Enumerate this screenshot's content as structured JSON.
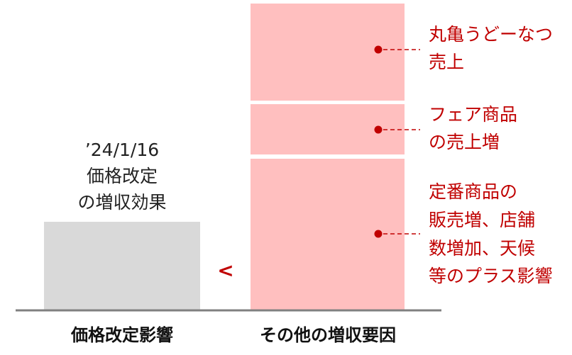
{
  "left_bar": {
    "label_lines": [
      "’24/1/16",
      "価格改定",
      "の増収効果"
    ],
    "caption": "価格改定影響"
  },
  "comparison_symbol": "<",
  "right_bar": {
    "caption": "その他の増収要因",
    "segments": [
      {
        "label_lines": [
          "丸亀うどーなつ",
          "売上"
        ]
      },
      {
        "label_lines": [
          "フェア商品",
          "の売上増"
        ]
      },
      {
        "label_lines": [
          "定番商品の",
          "販売増、店舗",
          "数増加、天候",
          "等のプラス影響"
        ]
      }
    ]
  }
}
